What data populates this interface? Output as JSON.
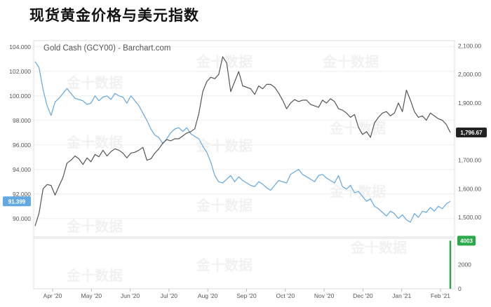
{
  "title": "现货黄金价格与美元指数",
  "watermark": "金十数据",
  "chart_data": {
    "type": "line",
    "source_label": "Gold Cash (GCY00) - Barchart.com",
    "x_ticks": [
      "Apr '20",
      "May '20",
      "Jun '20",
      "Jul '20",
      "Aug '20",
      "Sep '20",
      "Oct '20",
      "Nov '20",
      "Dec '20",
      "Jan '21",
      "Feb '21"
    ],
    "y_left": {
      "ticks": [
        "104.000",
        "102.000",
        "100.000",
        "98.000",
        "96.000",
        "94.000",
        "92.000",
        "90.000"
      ],
      "range": [
        88.5,
        104.5
      ]
    },
    "y_right": {
      "ticks": [
        "2,100.00",
        "2,000.00",
        "1,900.00",
        "1,800.00",
        "1,700.00",
        "1,600.00",
        "1,500.00"
      ],
      "range": [
        1432,
        2118
      ]
    },
    "volume_ticks": [
      "2000",
      "0"
    ],
    "volume_range": [
      0,
      4200
    ],
    "series": [
      {
        "axis": "left",
        "color": "#63a8e0",
        "last_label": "91.399",
        "values": [
          102.8,
          102.3,
          100.5,
          99.2,
          98.4,
          99.5,
          99.8,
          100.2,
          100.6,
          100.2,
          99.8,
          99.7,
          99.6,
          99.3,
          99.4,
          100.0,
          99.6,
          99.9,
          100.0,
          99.7,
          100.2,
          100.0,
          99.9,
          99.4,
          100.0,
          99.6,
          99.2,
          98.6,
          98.0,
          97.3,
          96.8,
          96.6,
          96.1,
          96.5,
          97.0,
          97.3,
          97.4,
          97.1,
          97.4,
          96.9,
          96.7,
          96.5,
          95.9,
          95.4,
          94.6,
          93.5,
          93.0,
          92.9,
          93.2,
          93.5,
          93.0,
          93.4,
          93.1,
          92.9,
          92.7,
          92.6,
          93.0,
          92.8,
          92.5,
          92.3,
          92.7,
          93.1,
          93.0,
          92.9,
          93.6,
          93.8,
          94.0,
          93.6,
          93.4,
          93.2,
          93.0,
          93.5,
          93.6,
          93.3,
          93.1,
          92.9,
          93.5,
          92.6,
          92.4,
          92.7,
          92.1,
          92.2,
          91.8,
          91.4,
          91.6,
          91.0,
          90.8,
          90.5,
          90.2,
          90.6,
          90.4,
          90.0,
          90.3,
          89.9,
          89.7,
          90.4,
          90.1,
          90.6,
          90.5,
          90.9,
          90.6,
          91.0,
          90.8,
          91.2,
          91.4
        ]
      },
      {
        "axis": "right",
        "color": "#555555",
        "last_label": "1,796.67",
        "values": [
          1470,
          1515,
          1600,
          1615,
          1612,
          1578,
          1610,
          1640,
          1690,
          1700,
          1715,
          1705,
          1685,
          1708,
          1695,
          1720,
          1712,
          1735,
          1715,
          1730,
          1740,
          1735,
          1725,
          1708,
          1725,
          1728,
          1735,
          1745,
          1700,
          1705,
          1725,
          1740,
          1760,
          1772,
          1768,
          1775,
          1775,
          1785,
          1795,
          1800,
          1810,
          1862,
          1940,
          1975,
          1990,
          1985,
          2000,
          2062,
          2040,
          1940,
          1975,
          2010,
          1960,
          1955,
          1950,
          1930,
          1960,
          1950,
          1965,
          1965,
          1955,
          1935,
          1910,
          1880,
          1900,
          1912,
          1905,
          1910,
          1910,
          1895,
          1890,
          1885,
          1910,
          1900,
          1915,
          1905,
          1880,
          1875,
          1865,
          1850,
          1860,
          1815,
          1790,
          1800,
          1780,
          1830,
          1850,
          1865,
          1870,
          1855,
          1865,
          1900,
          1870,
          1945,
          1910,
          1870,
          1850,
          1855,
          1840,
          1865,
          1855,
          1845,
          1840,
          1825,
          1797
        ]
      }
    ],
    "volume_marker": {
      "value": 4003,
      "label": "4003",
      "color": "#2aa84a"
    }
  }
}
